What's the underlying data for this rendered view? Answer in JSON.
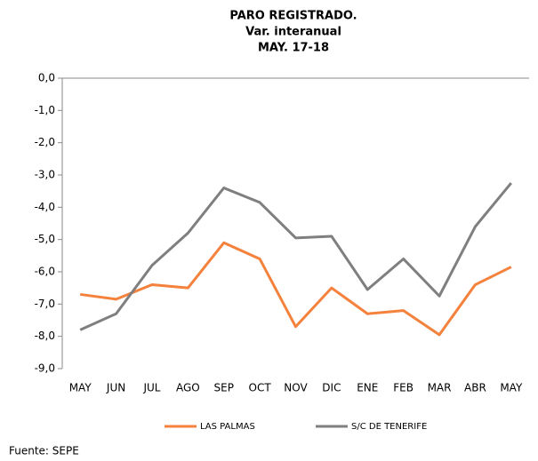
{
  "chart_data": {
    "type": "line",
    "title": [
      "PARO REGISTRADO.",
      "Var. interanual",
      "MAY. 17-18"
    ],
    "categories": [
      "MAY",
      "JUN",
      "JUL",
      "AGO",
      "SEP",
      "OCT",
      "NOV",
      "DIC",
      "ENE",
      "FEB",
      "MAR",
      "ABR",
      "MAY"
    ],
    "series": [
      {
        "name": "LAS PALMAS",
        "color": "#f4813c",
        "values": [
          -6.7,
          -6.85,
          -6.4,
          -6.5,
          -5.1,
          -5.6,
          -7.7,
          -6.5,
          -7.3,
          -7.2,
          -7.95,
          -6.4,
          -5.85
        ]
      },
      {
        "name": "S/C DE TENERIFE",
        "color": "#7f7f7f",
        "values": [
          -7.8,
          -7.3,
          -5.8,
          -4.8,
          -3.4,
          -3.85,
          -4.95,
          -4.9,
          -6.55,
          -5.6,
          -6.75,
          -4.6,
          -3.25
        ]
      }
    ],
    "ylim": [
      -9,
      0
    ],
    "yticks": [
      {
        "value": 0,
        "label": "0,0"
      },
      {
        "value": -1,
        "label": "-1,0"
      },
      {
        "value": -2,
        "label": "-2,0"
      },
      {
        "value": -3,
        "label": "-3,0"
      },
      {
        "value": -4,
        "label": "-4,0"
      },
      {
        "value": -5,
        "label": "-5,0"
      },
      {
        "value": -6,
        "label": "-6,0"
      },
      {
        "value": -7,
        "label": "-7,0"
      },
      {
        "value": -8,
        "label": "-8,0"
      },
      {
        "value": -9,
        "label": "-9,0"
      }
    ],
    "grid": false,
    "legend": "bottom",
    "source": "Fuente: SEPE"
  }
}
